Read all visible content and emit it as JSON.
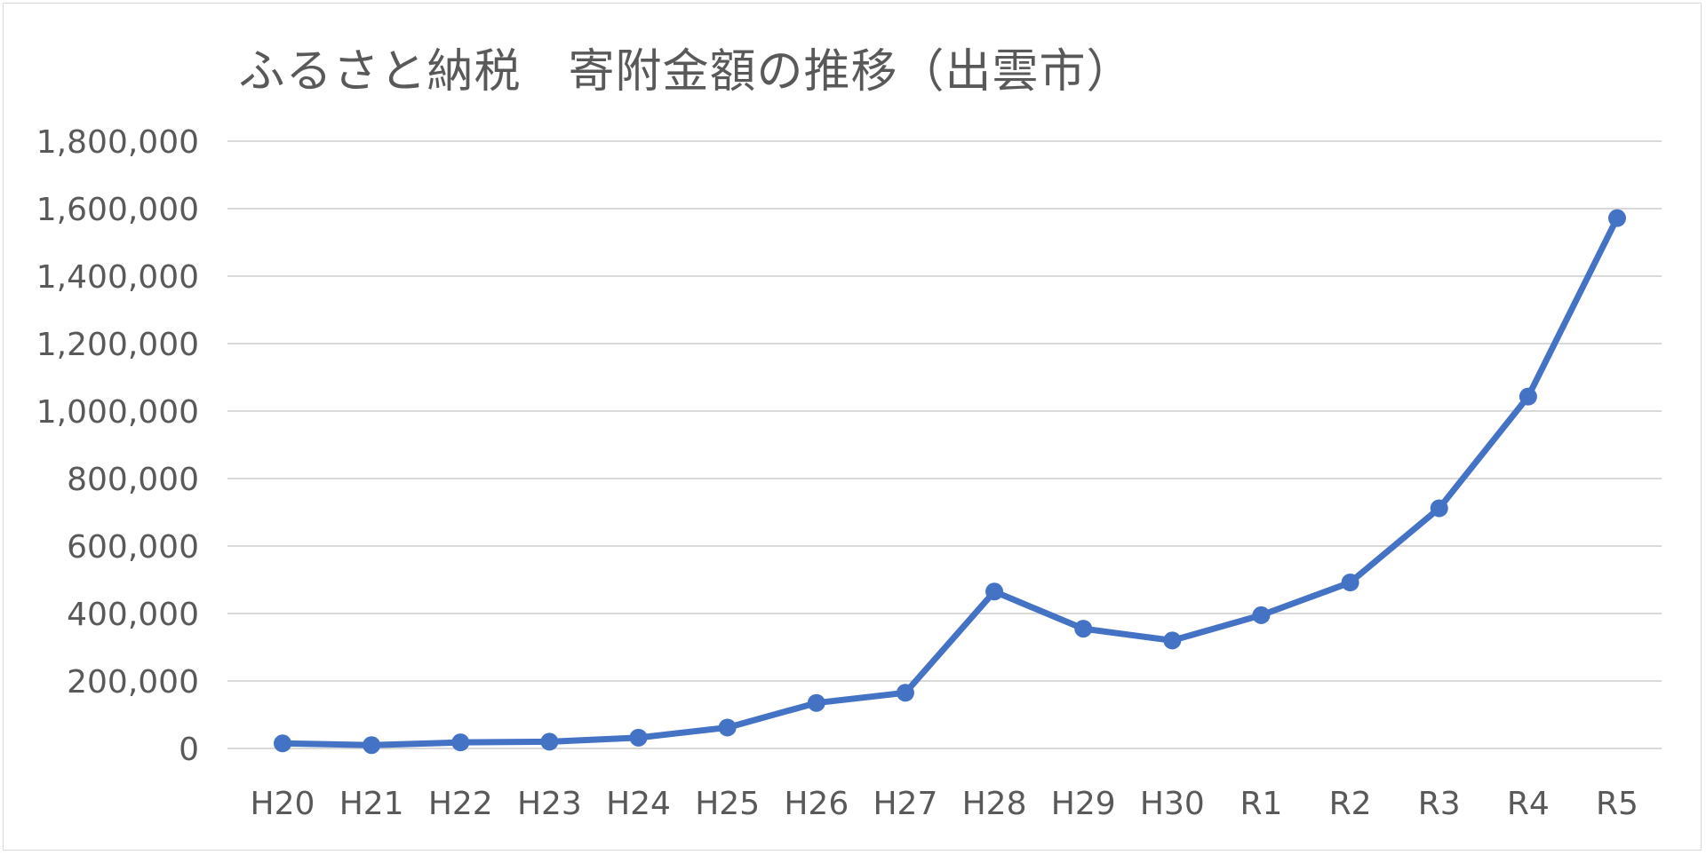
{
  "chart_data": {
    "type": "line",
    "title": "ふるさと納税　寄附金額の推移（出雲市）",
    "xlabel": "",
    "ylabel": "",
    "categories": [
      "H20",
      "H21",
      "H22",
      "H23",
      "H24",
      "H25",
      "H26",
      "H27",
      "H28",
      "H29",
      "H30",
      "R1",
      "R2",
      "R3",
      "R4",
      "R5"
    ],
    "series": [
      {
        "values": [
          15000,
          10000,
          18000,
          20000,
          32000,
          62000,
          135000,
          165000,
          465000,
          355000,
          320000,
          395000,
          492000,
          712000,
          1043000,
          1572000
        ]
      }
    ],
    "ylim": [
      0,
      1800000
    ],
    "yticks": [
      {
        "value": 0,
        "label": "0"
      },
      {
        "value": 200000,
        "label": "200,000"
      },
      {
        "value": 400000,
        "label": "400,000"
      },
      {
        "value": 600000,
        "label": "600,000"
      },
      {
        "value": 800000,
        "label": "800,000"
      },
      {
        "value": 1000000,
        "label": "1,000,000"
      },
      {
        "value": 1200000,
        "label": "1,200,000"
      },
      {
        "value": 1400000,
        "label": "1,400,000"
      },
      {
        "value": 1600000,
        "label": "1,600,000"
      },
      {
        "value": 1800000,
        "label": "1,800,000"
      }
    ],
    "grid": true,
    "legend": "none",
    "colors": {
      "line": "#4472C4",
      "grid": "#d9d9d9",
      "text": "#595959"
    }
  }
}
